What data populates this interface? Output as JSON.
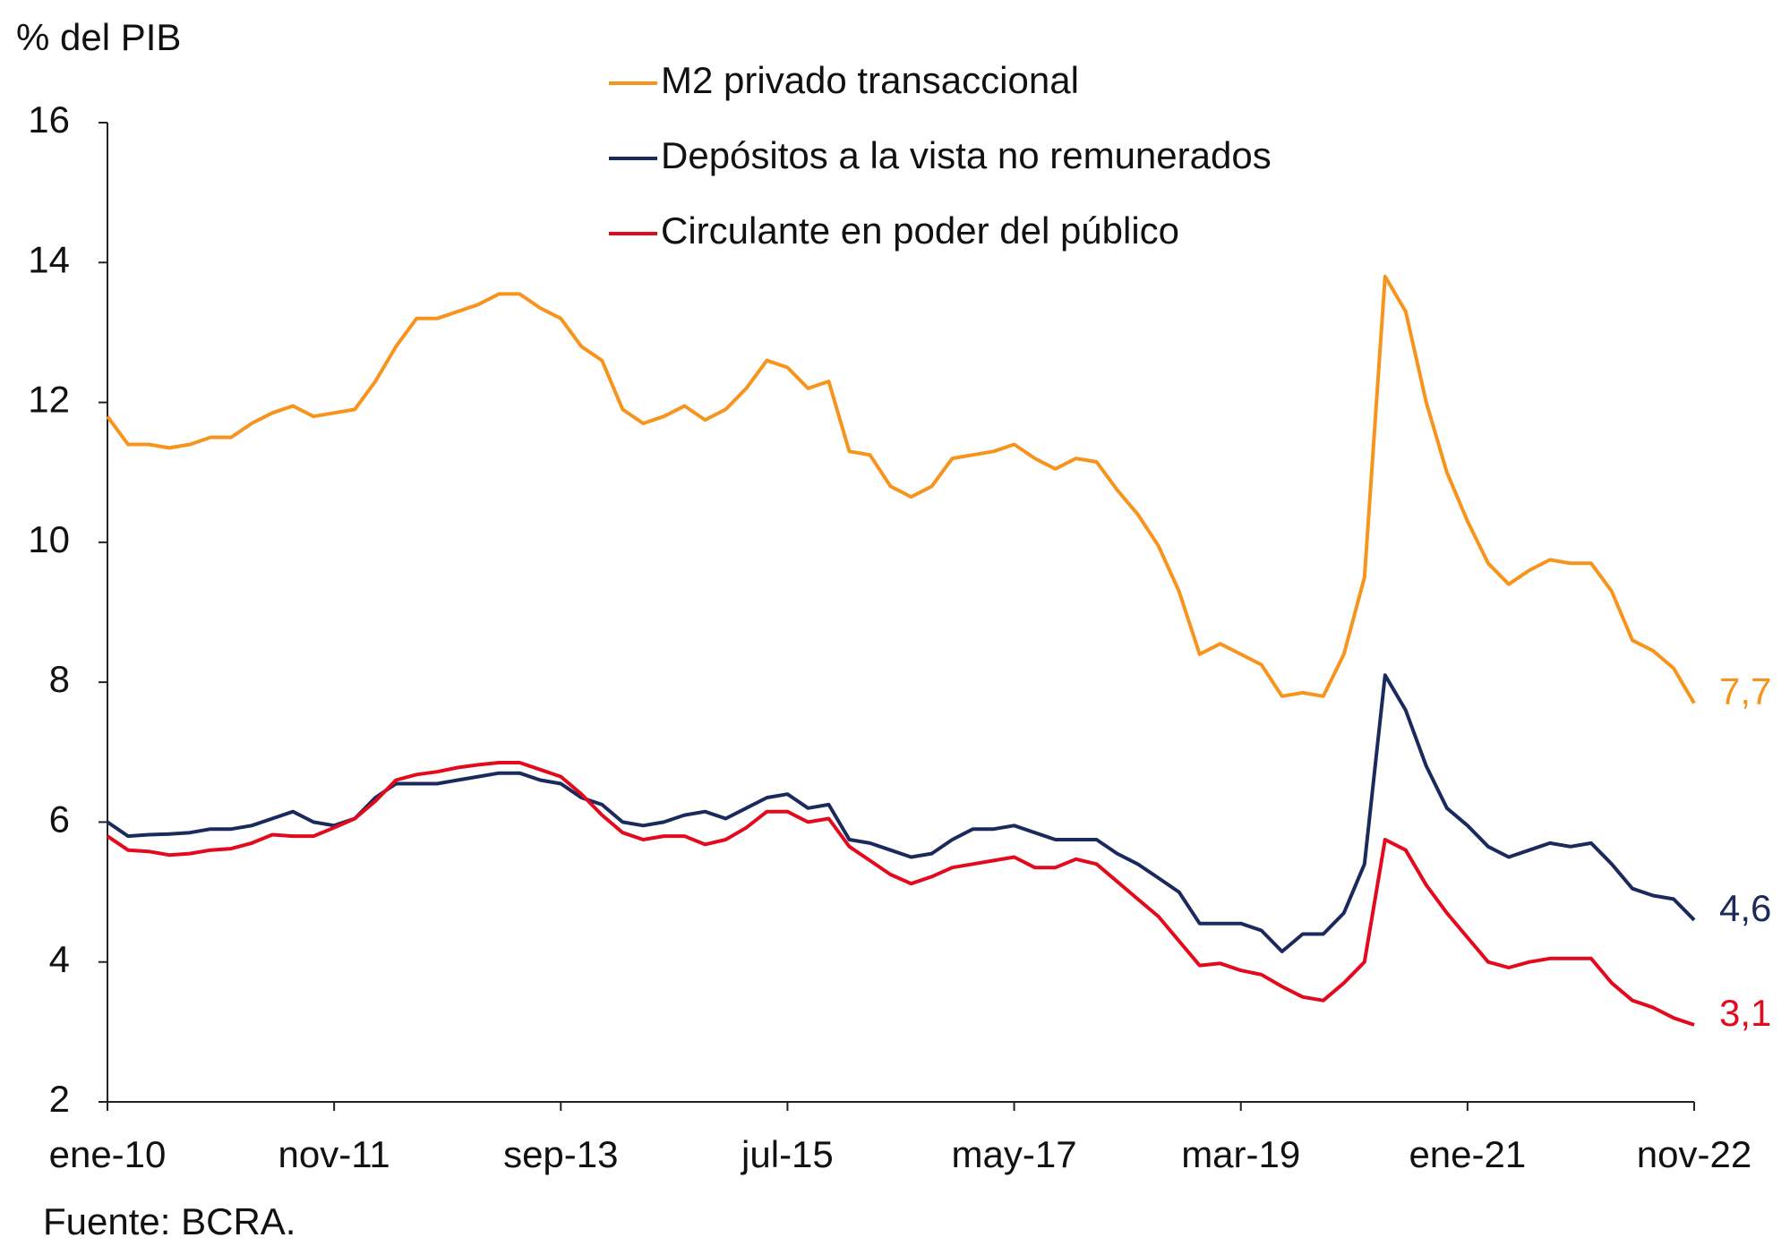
{
  "chart_data": {
    "type": "line",
    "y_label": "% del PIB",
    "source": "Fuente: BCRA.",
    "legend": "top",
    "ylim": [
      2,
      16
    ],
    "yticks": [
      2,
      4,
      6,
      8,
      10,
      12,
      14,
      16
    ],
    "categories": [
      "ene-10",
      null,
      null,
      null,
      null,
      null,
      null,
      null,
      null,
      null,
      null,
      "nov-11",
      null,
      null,
      null,
      null,
      null,
      null,
      null,
      null,
      null,
      null,
      "sep-13",
      null,
      null,
      null,
      null,
      null,
      null,
      null,
      null,
      null,
      null,
      "jul-15",
      null,
      null,
      null,
      null,
      null,
      null,
      null,
      null,
      null,
      null,
      "may-17",
      null,
      null,
      null,
      null,
      null,
      null,
      null,
      null,
      null,
      null,
      "mar-19",
      null,
      null,
      null,
      null,
      null,
      null,
      null,
      null,
      null,
      null,
      "ene-21",
      null,
      null,
      null,
      null,
      null,
      null,
      null,
      null,
      null,
      null,
      "nov-22"
    ],
    "series": [
      {
        "name": "M2 privado transaccional",
        "color": "#f7941d",
        "values": [
          11.8,
          11.4,
          11.4,
          11.35,
          11.4,
          11.5,
          11.5,
          11.7,
          11.85,
          11.95,
          11.8,
          11.85,
          11.9,
          12.3,
          12.8,
          13.2,
          13.2,
          13.3,
          13.4,
          13.55,
          13.55,
          13.35,
          13.2,
          12.8,
          12.6,
          11.9,
          11.7,
          11.8,
          11.95,
          11.75,
          11.9,
          12.2,
          12.6,
          12.5,
          12.2,
          12.3,
          11.3,
          11.25,
          10.8,
          10.65,
          10.8,
          11.2,
          11.25,
          11.3,
          11.4,
          11.2,
          11.05,
          11.2,
          11.15,
          10.75,
          10.4,
          9.95,
          9.3,
          8.4,
          8.55,
          8.4,
          8.25,
          7.8,
          7.85,
          7.8,
          8.4,
          9.5,
          13.8,
          13.3,
          12.0,
          11.0,
          10.3,
          9.7,
          9.4,
          9.6,
          9.75,
          9.7,
          9.7,
          9.3,
          8.6,
          8.45,
          8.2,
          7.7
        ],
        "value_labels": [
          null,
          null,
          null,
          null,
          null,
          null,
          null,
          null,
          null,
          null,
          null,
          null,
          null,
          null,
          null,
          null,
          null,
          null,
          null,
          null,
          null,
          null,
          null,
          null,
          null,
          null,
          null,
          null,
          null,
          null,
          null,
          null,
          null,
          null,
          null,
          null,
          null,
          null,
          null,
          null,
          null,
          null,
          null,
          null,
          null,
          null,
          null,
          null,
          null,
          null,
          null,
          null,
          null,
          null,
          null,
          null,
          null,
          null,
          null,
          null,
          null,
          null,
          null,
          null,
          null,
          null,
          null,
          null,
          null,
          null,
          null,
          null,
          null,
          null,
          null,
          null,
          null,
          "7,7"
        ]
      },
      {
        "name": "Depósitos a la vista no remunerados",
        "color": "#1b2a5c",
        "values": [
          6.0,
          5.8,
          5.82,
          5.83,
          5.85,
          5.9,
          5.9,
          5.95,
          6.05,
          6.15,
          6.0,
          5.95,
          6.05,
          6.35,
          6.55,
          6.55,
          6.55,
          6.6,
          6.65,
          6.7,
          6.7,
          6.6,
          6.55,
          6.35,
          6.25,
          6.0,
          5.95,
          6.0,
          6.1,
          6.15,
          6.05,
          6.2,
          6.35,
          6.4,
          6.2,
          6.25,
          5.75,
          5.7,
          5.6,
          5.5,
          5.55,
          5.75,
          5.9,
          5.9,
          5.95,
          5.85,
          5.75,
          5.75,
          5.75,
          5.55,
          5.4,
          5.2,
          5.0,
          4.55,
          4.55,
          4.55,
          4.45,
          4.15,
          4.4,
          4.4,
          4.7,
          5.4,
          8.1,
          7.6,
          6.8,
          6.2,
          5.95,
          5.65,
          5.5,
          5.6,
          5.7,
          5.65,
          5.7,
          5.4,
          5.05,
          4.95,
          4.9,
          4.6
        ],
        "value_labels": [
          null,
          null,
          null,
          null,
          null,
          null,
          null,
          null,
          null,
          null,
          null,
          null,
          null,
          null,
          null,
          null,
          null,
          null,
          null,
          null,
          null,
          null,
          null,
          null,
          null,
          null,
          null,
          null,
          null,
          null,
          null,
          null,
          null,
          null,
          null,
          null,
          null,
          null,
          null,
          null,
          null,
          null,
          null,
          null,
          null,
          null,
          null,
          null,
          null,
          null,
          null,
          null,
          null,
          null,
          null,
          null,
          null,
          null,
          null,
          null,
          null,
          null,
          null,
          null,
          null,
          null,
          null,
          null,
          null,
          null,
          null,
          null,
          null,
          null,
          null,
          null,
          null,
          "4,6"
        ]
      },
      {
        "name": "Circulante en poder del público",
        "color": "#e30a1d",
        "values": [
          5.8,
          5.6,
          5.58,
          5.53,
          5.55,
          5.6,
          5.62,
          5.7,
          5.82,
          5.8,
          5.8,
          5.92,
          6.05,
          6.3,
          6.6,
          6.68,
          6.72,
          6.78,
          6.82,
          6.85,
          6.85,
          6.75,
          6.65,
          6.4,
          6.1,
          5.85,
          5.75,
          5.8,
          5.8,
          5.68,
          5.75,
          5.92,
          6.15,
          6.15,
          6.0,
          6.05,
          5.65,
          5.45,
          5.25,
          5.12,
          5.22,
          5.35,
          5.4,
          5.45,
          5.5,
          5.35,
          5.35,
          5.47,
          5.4,
          5.15,
          4.9,
          4.65,
          4.3,
          3.95,
          3.98,
          3.88,
          3.82,
          3.65,
          3.5,
          3.45,
          3.7,
          4.0,
          5.75,
          5.6,
          5.1,
          4.7,
          4.35,
          4.0,
          3.92,
          4.0,
          4.05,
          4.05,
          4.05,
          3.7,
          3.45,
          3.35,
          3.2,
          3.1
        ],
        "value_labels": [
          null,
          null,
          null,
          null,
          null,
          null,
          null,
          null,
          null,
          null,
          null,
          null,
          null,
          null,
          null,
          null,
          null,
          null,
          null,
          null,
          null,
          null,
          null,
          null,
          null,
          null,
          null,
          null,
          null,
          null,
          null,
          null,
          null,
          null,
          null,
          null,
          null,
          null,
          null,
          null,
          null,
          null,
          null,
          null,
          null,
          null,
          null,
          null,
          null,
          null,
          null,
          null,
          null,
          null,
          null,
          null,
          null,
          null,
          null,
          null,
          null,
          null,
          null,
          null,
          null,
          null,
          null,
          null,
          null,
          null,
          null,
          null,
          null,
          null,
          null,
          null,
          null,
          "3,1"
        ]
      }
    ]
  }
}
